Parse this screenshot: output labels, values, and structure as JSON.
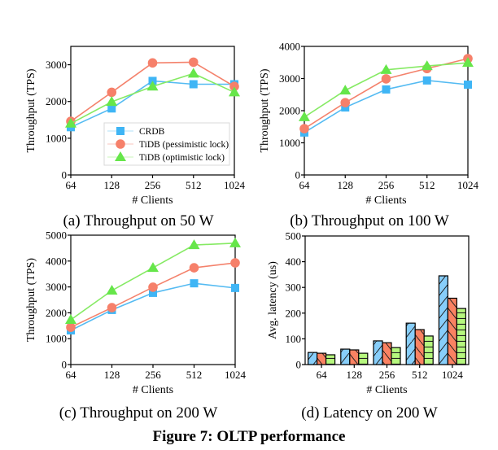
{
  "figure_title": "Figure 7: OLTP performance",
  "series_styles": [
    {
      "name": "CRDB",
      "line_color": "#55BBF2",
      "marker_color": "#3FB5F5",
      "marker": "square",
      "bar_color": "#87CEFA",
      "hatch": "diagonal-up"
    },
    {
      "name": "TiDB (pessimistic lock)",
      "line_color": "#F4826C",
      "marker_color": "#F6806A",
      "marker": "circle",
      "bar_color": "#FA8262",
      "hatch": "diagonal-down"
    },
    {
      "name": "TiDB (optimistic lock)",
      "line_color": "#86EA64",
      "marker_color": "#66E64A",
      "marker": "triangle",
      "bar_color": "#B6F77E",
      "hatch": "horizontal"
    }
  ],
  "chart_data": [
    {
      "id": "a",
      "type": "line",
      "caption": "(a) Throughput on 50 W",
      "xlabel": "# Clients",
      "ylabel": "Throughput (TPS)",
      "categories": [
        "64",
        "128",
        "256",
        "512",
        "1024"
      ],
      "yticks": [
        0,
        1000,
        2000,
        3000
      ],
      "ylim": [
        0,
        3500
      ],
      "legend": "lower-right",
      "grid": false,
      "series": [
        {
          "name": "CRDB",
          "values": [
            1300,
            1810,
            2560,
            2470,
            2470
          ]
        },
        {
          "name": "TiDB (pessimistic lock)",
          "values": [
            1460,
            2250,
            3050,
            3070,
            2410
          ]
        },
        {
          "name": "TiDB (optimistic lock)",
          "values": [
            1400,
            1990,
            2410,
            2760,
            2250
          ]
        }
      ]
    },
    {
      "id": "b",
      "type": "line",
      "caption": "(b) Throughput on 100 W",
      "xlabel": "# Clients",
      "ylabel": "Throughput (TPS)",
      "categories": [
        "64",
        "128",
        "256",
        "512",
        "1024"
      ],
      "yticks": [
        0,
        1000,
        2000,
        3000,
        4000
      ],
      "ylim": [
        0,
        4000
      ],
      "grid": false,
      "series": [
        {
          "name": "CRDB",
          "values": [
            1320,
            2100,
            2660,
            2940,
            2810
          ]
        },
        {
          "name": "TiDB (pessimistic lock)",
          "values": [
            1440,
            2250,
            2990,
            3310,
            3620
          ]
        },
        {
          "name": "TiDB (optimistic lock)",
          "values": [
            1800,
            2630,
            3270,
            3390,
            3490
          ]
        }
      ]
    },
    {
      "id": "c",
      "type": "line",
      "caption": "(c) Throughput on 200 W",
      "xlabel": "# Clients",
      "ylabel": "Throughput (TPS)",
      "categories": [
        "64",
        "128",
        "256",
        "512",
        "1024"
      ],
      "yticks": [
        0,
        1000,
        2000,
        3000,
        4000,
        5000
      ],
      "ylim": [
        0,
        5000
      ],
      "grid": false,
      "series": [
        {
          "name": "CRDB",
          "values": [
            1320,
            2110,
            2770,
            3140,
            2960
          ]
        },
        {
          "name": "TiDB (pessimistic lock)",
          "values": [
            1440,
            2200,
            2990,
            3740,
            3930
          ]
        },
        {
          "name": "TiDB (optimistic lock)",
          "values": [
            1730,
            2860,
            3740,
            4620,
            4690
          ]
        }
      ]
    },
    {
      "id": "d",
      "type": "bar",
      "caption": "(d) Latency on 200 W",
      "xlabel": "# Clients",
      "ylabel": "Avg. latency (us)",
      "categories": [
        "64",
        "128",
        "256",
        "512",
        "1024"
      ],
      "yticks": [
        0,
        100,
        200,
        300,
        400,
        500
      ],
      "ylim": [
        0,
        500
      ],
      "grid": false,
      "series": [
        {
          "name": "CRDB",
          "values": [
            47,
            60,
            92,
            161,
            345
          ]
        },
        {
          "name": "TiDB (pessimistic lock)",
          "values": [
            44,
            57,
            85,
            136,
            258
          ]
        },
        {
          "name": "TiDB (optimistic lock)",
          "values": [
            38,
            44,
            66,
            111,
            218
          ]
        }
      ]
    }
  ]
}
